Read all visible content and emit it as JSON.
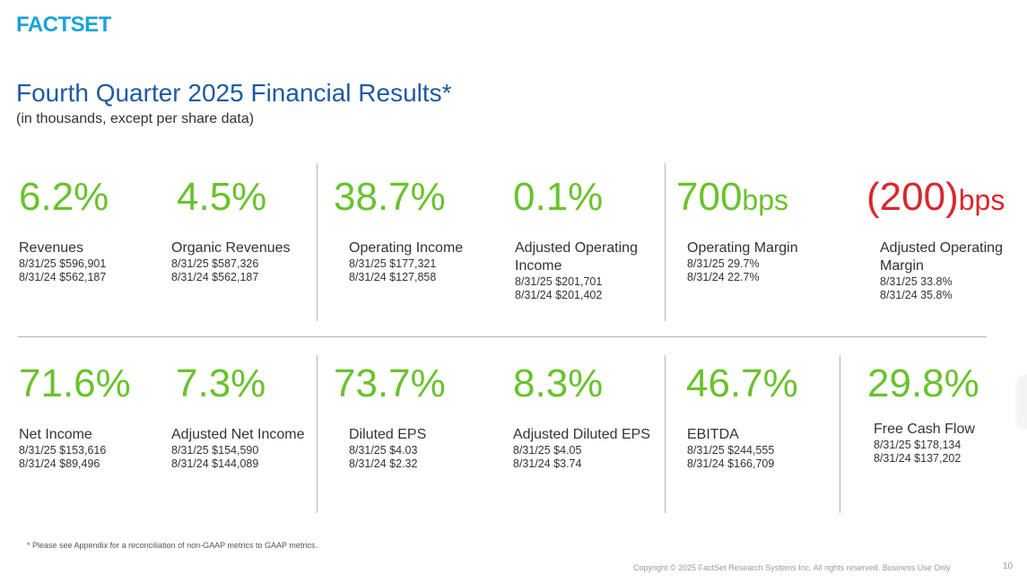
{
  "brand": {
    "logo_text": "FACTSET"
  },
  "header": {
    "title": "Fourth Quarter 2025 Financial Results*",
    "subtitle": "(in thousands, except per share data)"
  },
  "metrics_row1": [
    {
      "value": "6.2%",
      "unit": "",
      "label": "Revenues",
      "line1": "8/31/25 $596,901",
      "line2": "8/31/24 $562,187"
    },
    {
      "value": "4.5%",
      "unit": "",
      "label": "Organic Revenues",
      "line1": "8/31/25 $587,326",
      "line2": "8/31/24 $562,187"
    },
    {
      "value": "38.7%",
      "unit": "",
      "label": "Operating Income",
      "line1": "8/31/25  $177,321",
      "line2": "8/31/24  $127,858"
    },
    {
      "value": "0.1%",
      "unit": "",
      "label": "Adjusted Operating Income",
      "line1": "8/31/25 $201,701",
      "line2": "8/31/24 $201,402"
    },
    {
      "value": "700",
      "unit": "bps",
      "label": "Operating Margin",
      "line1": "8/31/25 29.7%",
      "line2": "8/31/24 22.7%"
    },
    {
      "value": "(200)",
      "unit": "bps",
      "label": "Adjusted Operating Margin",
      "line1": "8/31/25 33.8%",
      "line2": "8/31/24 35.8%"
    }
  ],
  "metrics_row2": [
    {
      "value": "71.6%",
      "unit": "",
      "label": "Net Income",
      "line1": "8/31/25 $153,616",
      "line2": "8/31/24 $89,496"
    },
    {
      "value": "7.3%",
      "unit": "",
      "label": "Adjusted Net Income",
      "line1": "8/31/25 $154,590",
      "line2": "8/31/24 $144,089"
    },
    {
      "value": "73.7%",
      "unit": "",
      "label": "Diluted EPS",
      "line1": "8/31/25 $4.03",
      "line2": "8/31/24 $2.32"
    },
    {
      "value": "8.3%",
      "unit": "",
      "label": "Adjusted Diluted EPS",
      "line1": "8/31/25 $4.05",
      "line2": "8/31/24 $3.74"
    },
    {
      "value": "46.7%",
      "unit": "",
      "label": "EBITDA",
      "line1": "8/31/25 $244,555",
      "line2": "8/31/24 $166,709"
    },
    {
      "value": "29.8%",
      "unit": "",
      "label": "Free Cash Flow",
      "line1": "8/31/25 $178,134",
      "line2": "8/31/24 $137,202"
    }
  ],
  "colors": {
    "positive": "#6ac22e",
    "negative": "#d9272e",
    "title": "#1e5aa0",
    "logo": "#1aa3d8"
  },
  "footer": {
    "footnote": "* Please see Appendix for a reconciliation of non-GAAP metrics to GAAP metrics.",
    "copyright": "Copyright © 2025 FactSet Research Systems Inc. All rights reserved. Business Use Only",
    "page_number": "10"
  }
}
